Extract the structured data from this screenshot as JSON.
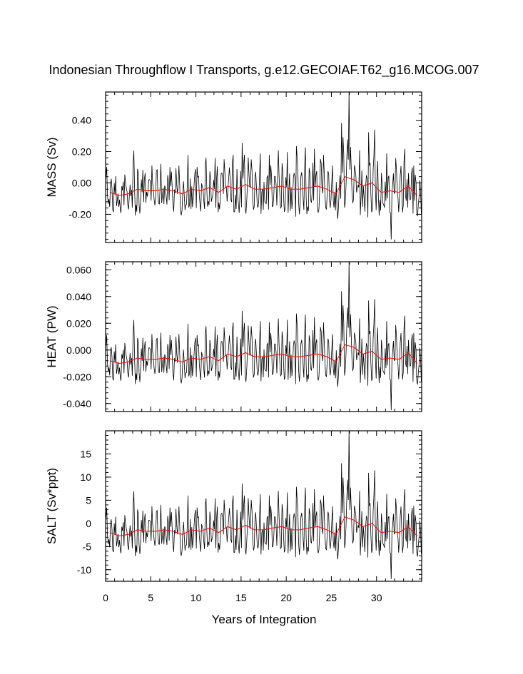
{
  "chart_data": {
    "type": "line",
    "title": "Indonesian Throughflow I Transports, g.e12.GECOIAF.T62_g16.MCOG.007",
    "xlabel": "Years of Integration",
    "xlim": [
      0,
      35
    ],
    "x_ticks": [
      0,
      5,
      10,
      15,
      20,
      25,
      30
    ],
    "x_tick_labels": [
      "0",
      "5",
      "10",
      "15",
      "20",
      "25",
      "30"
    ],
    "series_colors": {
      "monthly": "#000000",
      "annual_mean": "#ff0000"
    },
    "years": [
      0.5,
      1.5,
      2.5,
      3.5,
      4.5,
      5.5,
      6.5,
      7.5,
      8.5,
      9.5,
      10.5,
      11.5,
      12.5,
      13.5,
      14.5,
      15.5,
      16.5,
      17.5,
      18.5,
      19.5,
      20.5,
      21.5,
      22.5,
      23.5,
      24.5,
      25.5,
      26.5,
      27.5,
      28.5,
      29.5,
      30.5,
      31.5,
      32.5,
      33.5,
      34.5
    ],
    "panels": [
      {
        "ylabel": "MASS (Sv)",
        "ylim": [
          -0.38,
          0.58
        ],
        "y_ticks": [
          -0.2,
          0.0,
          0.2,
          0.4
        ],
        "y_tick_labels": [
          "-0.20",
          "0.00",
          "0.20",
          "0.40"
        ],
        "annual_mean": [
          -0.06,
          -0.08,
          -0.07,
          -0.04,
          -0.05,
          -0.05,
          -0.04,
          -0.05,
          -0.07,
          -0.04,
          -0.05,
          -0.03,
          -0.06,
          -0.02,
          -0.04,
          -0.01,
          -0.04,
          -0.04,
          -0.03,
          -0.02,
          -0.04,
          -0.04,
          -0.03,
          -0.02,
          -0.04,
          -0.07,
          0.04,
          0.02,
          -0.02,
          0.0,
          -0.06,
          -0.05,
          -0.06,
          -0.02,
          -0.08
        ],
        "monthly": {
          "amplitude_per_year": [
            0.17,
            0.13,
            0.13,
            0.26,
            0.14,
            0.17,
            0.17,
            0.16,
            0.19,
            0.23,
            0.16,
            0.2,
            0.23,
            0.18,
            0.23,
            0.28,
            0.2,
            0.24,
            0.22,
            0.24,
            0.25,
            0.29,
            0.27,
            0.25,
            0.23,
            0.19,
            0.36,
            0.22,
            0.24,
            0.34,
            0.21,
            0.25,
            0.23,
            0.25,
            0.2
          ],
          "peaks": [
            {
              "x": 27.0,
              "y": 0.58
            },
            {
              "x": 29.8,
              "y": 0.34
            },
            {
              "x": 31.6,
              "y": -0.36
            }
          ],
          "noise": 0.06
        }
      },
      {
        "ylabel": "HEAT (PW)",
        "ylim": [
          -0.046,
          0.066
        ],
        "y_ticks": [
          -0.04,
          -0.02,
          0.0,
          0.02,
          0.04,
          0.06
        ],
        "y_tick_labels": [
          "-0.040",
          "-0.020",
          "0.000",
          "0.020",
          "0.040",
          "0.060"
        ],
        "annual_mean": [
          -0.008,
          -0.01,
          -0.009,
          -0.006,
          -0.007,
          -0.007,
          -0.006,
          -0.007,
          -0.009,
          -0.006,
          -0.007,
          -0.005,
          -0.008,
          -0.003,
          -0.005,
          -0.002,
          -0.005,
          -0.005,
          -0.004,
          -0.003,
          -0.005,
          -0.005,
          -0.004,
          -0.003,
          -0.005,
          -0.009,
          0.004,
          0.002,
          -0.003,
          -0.001,
          -0.007,
          -0.006,
          -0.007,
          -0.002,
          -0.01
        ],
        "monthly": {
          "amplitude_per_year": [
            0.02,
            0.015,
            0.015,
            0.03,
            0.017,
            0.02,
            0.02,
            0.019,
            0.022,
            0.027,
            0.019,
            0.024,
            0.027,
            0.021,
            0.027,
            0.033,
            0.024,
            0.028,
            0.026,
            0.028,
            0.029,
            0.034,
            0.032,
            0.029,
            0.027,
            0.022,
            0.042,
            0.026,
            0.028,
            0.04,
            0.025,
            0.029,
            0.027,
            0.029,
            0.024
          ],
          "peaks": [
            {
              "x": 27.0,
              "y": 0.066
            },
            {
              "x": 29.8,
              "y": 0.038
            },
            {
              "x": 31.6,
              "y": -0.045
            }
          ],
          "noise": 0.007
        }
      },
      {
        "ylabel": "SALT (Sv*ppt)",
        "ylim": [
          -12.5,
          20
        ],
        "y_ticks": [
          -10,
          -5,
          0,
          5,
          10,
          15
        ],
        "y_tick_labels": [
          "-10",
          "-5",
          "0",
          "5",
          "10",
          "15"
        ],
        "annual_mean": [
          -2.0,
          -2.7,
          -2.4,
          -1.4,
          -1.7,
          -1.7,
          -1.4,
          -1.7,
          -2.4,
          -1.4,
          -1.7,
          -1.0,
          -2.0,
          -0.7,
          -1.4,
          -0.4,
          -1.4,
          -1.4,
          -1.0,
          -0.7,
          -1.4,
          -1.4,
          -1.0,
          -0.7,
          -1.4,
          -2.4,
          1.4,
          0.7,
          -0.7,
          0.0,
          -2.0,
          -1.7,
          -2.0,
          -0.7,
          -2.7
        ],
        "monthly": {
          "amplitude_per_year": [
            5.7,
            4.4,
            4.4,
            8.8,
            4.7,
            5.7,
            5.7,
            5.4,
            6.4,
            7.8,
            5.4,
            6.8,
            7.8,
            6.1,
            7.8,
            9.5,
            6.8,
            8.1,
            7.4,
            8.1,
            8.5,
            9.8,
            9.2,
            8.5,
            7.8,
            6.4,
            12.2,
            7.4,
            8.1,
            11.5,
            7.1,
            8.5,
            7.8,
            8.5,
            6.8
          ],
          "peaks": [
            {
              "x": 27.0,
              "y": 20.0
            },
            {
              "x": 29.8,
              "y": 11.5
            },
            {
              "x": 31.6,
              "y": -12.0
            }
          ],
          "noise": 2.0
        }
      }
    ]
  }
}
